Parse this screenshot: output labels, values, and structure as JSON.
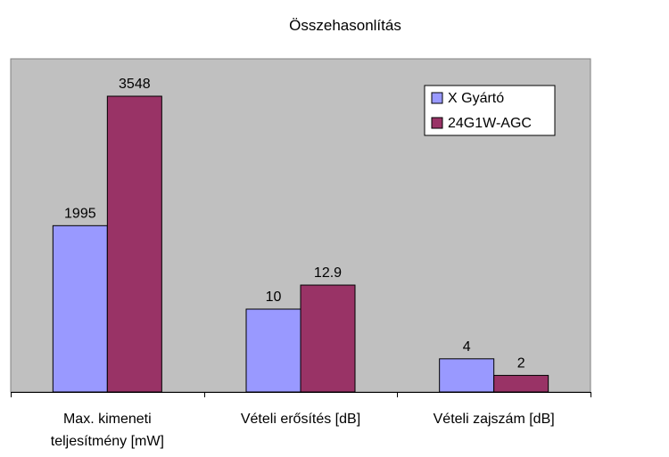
{
  "chart_data": {
    "type": "bar",
    "title": "Összehasonlítás",
    "categories": [
      [
        "Max. kimeneti",
        "teljesítmény [mW]"
      ],
      [
        "Vételi erősítés [dB]"
      ],
      [
        "Vételi zajszám [dB]"
      ]
    ],
    "series": [
      {
        "name": "X Gyártó",
        "color": "#9999ff",
        "values": [
          1995,
          10,
          4
        ],
        "labels": [
          "1995",
          "10",
          "4"
        ]
      },
      {
        "name": "24G1W-AGC",
        "color": "#993366",
        "values": [
          3548,
          12.9,
          2
        ],
        "labels": [
          "3548",
          "12.9",
          "2"
        ]
      }
    ],
    "legend_position": "top-right",
    "plot_background": "#c0c0c0",
    "grid": false,
    "value_axis_visible": false
  }
}
